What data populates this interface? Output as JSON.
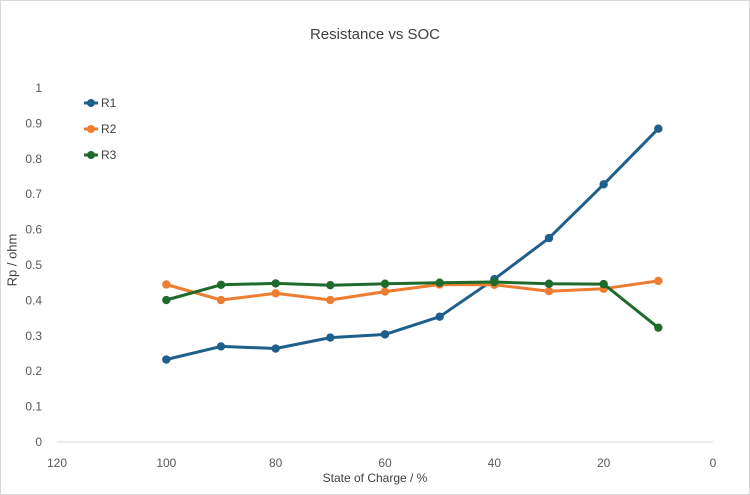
{
  "chart_data": {
    "type": "line",
    "title": "Resistance vs SOC",
    "xlabel": "State of Charge / %",
    "ylabel": "Rp / ohm",
    "xlim": [
      120,
      0
    ],
    "x_reversed": true,
    "ylim": [
      0,
      1
    ],
    "x_ticks": [
      120,
      100,
      80,
      60,
      40,
      20,
      0
    ],
    "y_ticks": [
      0,
      0.1,
      0.2,
      0.3,
      0.4,
      0.5,
      0.6,
      0.7,
      0.8,
      0.9,
      1
    ],
    "grid": false,
    "legend_position": "top-left",
    "x": [
      100,
      90,
      80,
      70,
      60,
      50,
      40,
      30,
      20,
      10
    ],
    "series": [
      {
        "name": "R1",
        "color": "#1f5f8b",
        "values": [
          0.233,
          0.27,
          0.264,
          0.295,
          0.304,
          0.354,
          0.46,
          0.576,
          0.728,
          0.885
        ]
      },
      {
        "name": "R2",
        "color": "#ed7d31",
        "values": [
          0.445,
          0.401,
          0.42,
          0.401,
          0.425,
          0.445,
          0.444,
          0.426,
          0.433,
          0.455
        ]
      },
      {
        "name": "R3",
        "color": "#1e6b2b",
        "values": [
          0.401,
          0.444,
          0.448,
          0.443,
          0.447,
          0.45,
          0.452,
          0.447,
          0.446,
          0.323
        ]
      }
    ]
  }
}
